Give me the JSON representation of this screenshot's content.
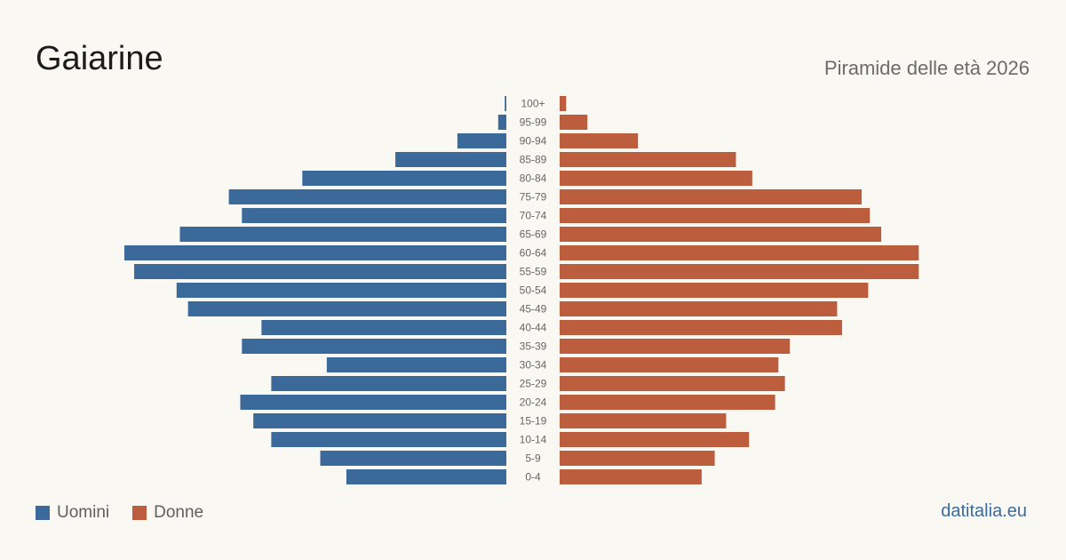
{
  "header": {
    "title": "Gaiarine",
    "subtitle": "Piramide delle età 2026"
  },
  "legend": {
    "men_label": "Uomini",
    "women_label": "Donne"
  },
  "footer": {
    "brand": "datitalia.eu"
  },
  "colors": {
    "men": "#3b6a9a",
    "women": "#bc5e3d",
    "background": "#faf8f3"
  },
  "chart_data": {
    "type": "bar",
    "orientation": "horizontal",
    "categories": [
      "100+",
      "95-99",
      "90-94",
      "85-89",
      "80-84",
      "75-79",
      "70-74",
      "65-69",
      "60-64",
      "55-59",
      "50-54",
      "45-49",
      "40-44",
      "35-39",
      "30-34",
      "25-29",
      "20-24",
      "15-19",
      "10-14",
      "5-9",
      "0-4"
    ],
    "series": [
      {
        "name": "Uomini",
        "values": [
          1,
          5,
          30,
          68,
          125,
          170,
          162,
          200,
          234,
          228,
          202,
          195,
          150,
          162,
          110,
          144,
          163,
          155,
          144,
          114,
          98
        ]
      },
      {
        "name": "Donne",
        "values": [
          4,
          17,
          48,
          108,
          118,
          185,
          190,
          197,
          220,
          220,
          189,
          170,
          173,
          141,
          134,
          138,
          132,
          102,
          116,
          95,
          87
        ]
      }
    ],
    "xlim": [
      0,
      234
    ],
    "axis": "hidden",
    "grid": false,
    "legend": "bottom-left"
  }
}
